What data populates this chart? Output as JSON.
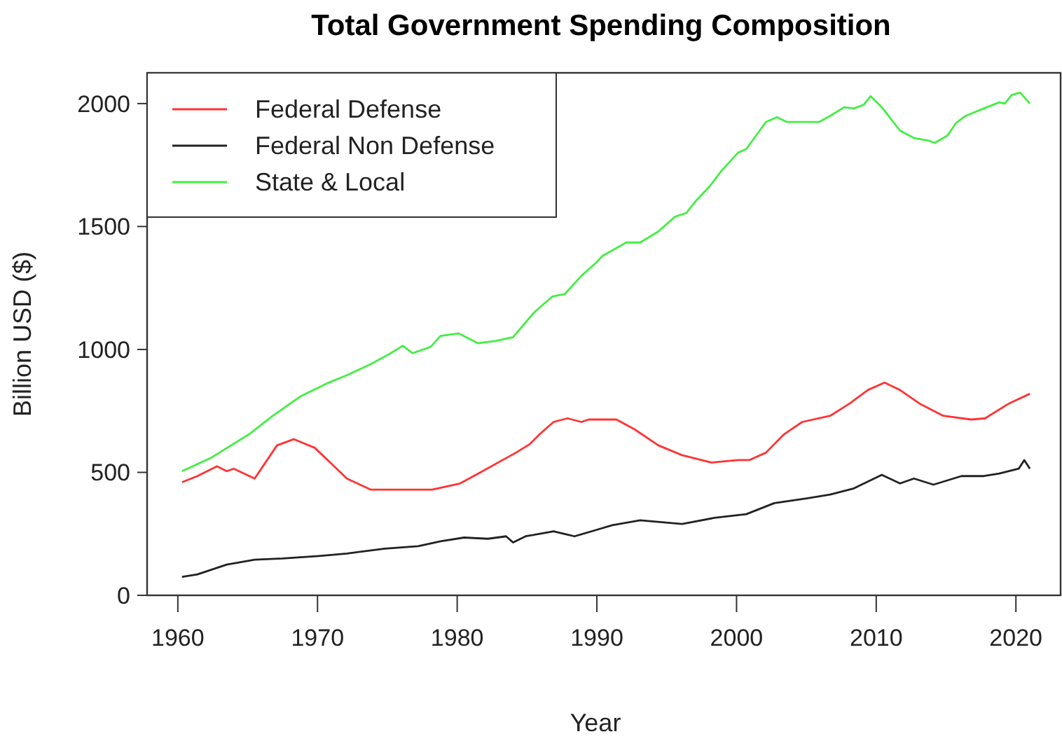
{
  "chart_data": {
    "type": "line",
    "title": "Total Government Spending Composition",
    "xlabel": "Year",
    "ylabel": "Billion USD ($)",
    "xlim": [
      1957.8,
      2023.2
    ],
    "ylim": [
      0,
      2125
    ],
    "xticks": [
      1960,
      1970,
      1980,
      1990,
      2000,
      2010,
      2020
    ],
    "yticks": [
      0,
      500,
      1000,
      1500,
      2000
    ],
    "grid": false,
    "legend": "top left",
    "line_style": "solid",
    "marker": "none",
    "series": [
      {
        "name": "Federal Defense",
        "color": "#ff3333",
        "x": [
          1960.3,
          1961.4,
          1962.8,
          1963.5,
          1964.0,
          1965.5,
          1967.1,
          1968.3,
          1969.8,
          1971.1,
          1972.1,
          1973.8,
          1975.5,
          1976.8,
          1978.2,
          1980.2,
          1981.5,
          1984.2,
          1985.2,
          1985.9,
          1986.9,
          1987.9,
          1988.9,
          1989.4,
          1991.4,
          1992.7,
          1994.4,
          1996.1,
          1998.2,
          2000.1,
          2000.9,
          2002.1,
          2003.4,
          2004.7,
          2006.7,
          2008.1,
          2009.4,
          2010.6,
          2011.7,
          2013.1,
          2014.8,
          2016.8,
          2017.8,
          2019.5,
          2021.0
        ],
        "values": [
          460,
          485,
          525,
          505,
          515,
          475,
          610,
          635,
          600,
          530,
          475,
          430,
          430,
          430,
          430,
          455,
          495,
          580,
          615,
          655,
          705,
          720,
          705,
          715,
          715,
          675,
          610,
          570,
          540,
          550,
          550,
          580,
          655,
          705,
          730,
          780,
          835,
          865,
          835,
          780,
          730,
          715,
          720,
          780,
          820
        ]
      },
      {
        "name": "Federal Non Defense",
        "color": "#222222",
        "x": [
          1960.3,
          1961.4,
          1963.5,
          1965.5,
          1967.5,
          1970.1,
          1972.1,
          1974.8,
          1977.2,
          1978.8,
          1980.5,
          1982.2,
          1983.5,
          1984.0,
          1984.9,
          1986.9,
          1988.4,
          1989.9,
          1991.1,
          1993.1,
          1996.1,
          1998.4,
          2000.7,
          2002.7,
          2005.1,
          2006.7,
          2008.4,
          2010.4,
          2011.7,
          2012.7,
          2014.1,
          2016.1,
          2017.7,
          2018.8,
          2019.5,
          2020.2,
          2020.6,
          2021.0
        ],
        "values": [
          75,
          85,
          125,
          145,
          150,
          160,
          170,
          190,
          200,
          220,
          235,
          230,
          240,
          215,
          240,
          260,
          240,
          265,
          285,
          305,
          290,
          315,
          330,
          375,
          395,
          410,
          435,
          490,
          455,
          475,
          450,
          485,
          485,
          495,
          505,
          515,
          550,
          515
        ]
      },
      {
        "name": "State & Local",
        "color": "#44ee44",
        "x": [
          1960.3,
          1962.4,
          1965.1,
          1966.8,
          1968.8,
          1970.8,
          1972.1,
          1973.8,
          1975.1,
          1976.1,
          1976.8,
          1978.1,
          1978.8,
          1980.1,
          1981.5,
          1982.8,
          1984.0,
          1985.5,
          1986.8,
          1987.7,
          1988.9,
          1989.9,
          1990.4,
          1992.1,
          1993.1,
          1994.4,
          1995.6,
          1996.4,
          1997.1,
          1998.1,
          1998.9,
          2000.1,
          2000.7,
          2001.4,
          2002.1,
          2002.9,
          2003.6,
          2004.7,
          2005.9,
          2006.7,
          2007.7,
          2008.4,
          2009.1,
          2009.6,
          2010.4,
          2011.7,
          2012.7,
          2013.7,
          2014.2,
          2015.1,
          2015.7,
          2016.4,
          2017.7,
          2018.8,
          2019.2,
          2019.7,
          2020.3,
          2021.0
        ],
        "values": [
          505,
          560,
          655,
          730,
          810,
          865,
          895,
          940,
          980,
          1015,
          985,
          1010,
          1055,
          1065,
          1025,
          1035,
          1050,
          1150,
          1215,
          1225,
          1300,
          1350,
          1380,
          1435,
          1435,
          1480,
          1540,
          1555,
          1605,
          1665,
          1725,
          1800,
          1815,
          1870,
          1925,
          1945,
          1925,
          1925,
          1925,
          1950,
          1985,
          1980,
          1995,
          2030,
          1985,
          1890,
          1860,
          1850,
          1840,
          1870,
          1920,
          1950,
          1980,
          2005,
          2000,
          2035,
          2045,
          2000
        ]
      }
    ]
  }
}
